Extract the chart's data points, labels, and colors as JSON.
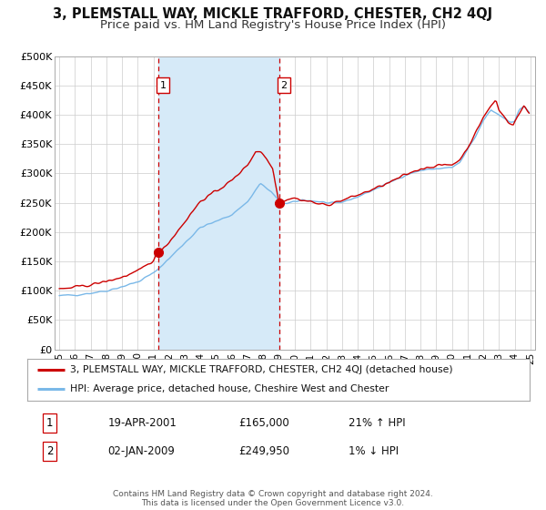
{
  "title": "3, PLEMSTALL WAY, MICKLE TRAFFORD, CHESTER, CH2 4QJ",
  "subtitle": "Price paid vs. HM Land Registry's House Price Index (HPI)",
  "title_fontsize": 10.5,
  "subtitle_fontsize": 9.5,
  "ylim": [
    0,
    500000
  ],
  "yticks": [
    0,
    50000,
    100000,
    150000,
    200000,
    250000,
    300000,
    350000,
    400000,
    450000,
    500000
  ],
  "ytick_labels": [
    "£0",
    "£50K",
    "£100K",
    "£150K",
    "£200K",
    "£250K",
    "£300K",
    "£350K",
    "£400K",
    "£450K",
    "£500K"
  ],
  "xlim_start": 1994.7,
  "xlim_end": 2025.3,
  "xtick_years": [
    1995,
    1996,
    1997,
    1998,
    1999,
    2000,
    2001,
    2002,
    2003,
    2004,
    2005,
    2006,
    2007,
    2008,
    2009,
    2010,
    2011,
    2012,
    2013,
    2014,
    2015,
    2016,
    2017,
    2018,
    2019,
    2020,
    2021,
    2022,
    2023,
    2024,
    2025
  ],
  "sale1_x": 2001.29,
  "sale1_y": 165000,
  "sale2_x": 2009.0,
  "sale2_y": 249950,
  "vline1_x": 2001.29,
  "vline2_x": 2009.0,
  "hpi_color": "#7ab8e8",
  "price_color": "#cc0000",
  "dot_color": "#cc0000",
  "shade_color": "#d6eaf8",
  "footer_text": "Contains HM Land Registry data © Crown copyright and database right 2024.\nThis data is licensed under the Open Government Licence v3.0.",
  "table_row1": [
    "1",
    "19-APR-2001",
    "£165,000",
    "21% ↑ HPI"
  ],
  "table_row2": [
    "2",
    "02-JAN-2009",
    "£249,950",
    "1% ↓ HPI"
  ],
  "bg_color": "#ffffff",
  "plot_bg_color": "#ffffff",
  "grid_color": "#cccccc",
  "legend_line1": "3, PLEMSTALL WAY, MICKLE TRAFFORD, CHESTER, CH2 4QJ (detached house)",
  "legend_line2": "HPI: Average price, detached house, Cheshire West and Chester"
}
